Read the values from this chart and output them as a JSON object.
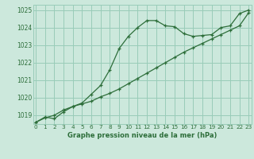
{
  "title": "Graphe pression niveau de la mer (hPa)",
  "background_color": "#cce8dc",
  "grid_color": "#99ccb8",
  "line_color": "#2d6e3a",
  "x_values": [
    0,
    1,
    2,
    3,
    4,
    5,
    6,
    7,
    8,
    9,
    10,
    11,
    12,
    13,
    14,
    15,
    16,
    17,
    18,
    19,
    20,
    21,
    22,
    23
  ],
  "line1_values": [
    1018.6,
    1018.9,
    1018.8,
    1019.2,
    1019.5,
    1019.7,
    1020.2,
    1020.7,
    1021.6,
    1022.8,
    1023.5,
    1024.0,
    1024.4,
    1024.4,
    1024.1,
    1024.05,
    1023.65,
    1023.5,
    1023.55,
    1023.6,
    1024.0,
    1024.1,
    1024.8,
    1025.0
  ],
  "line2_values": [
    1018.6,
    1018.85,
    1019.0,
    1019.3,
    1019.5,
    1019.65,
    1019.8,
    1020.05,
    1020.25,
    1020.5,
    1020.8,
    1021.1,
    1021.4,
    1021.7,
    1022.0,
    1022.3,
    1022.6,
    1022.85,
    1023.1,
    1023.35,
    1023.6,
    1023.85,
    1024.1,
    1024.85
  ],
  "ylim": [
    1018.5,
    1025.3
  ],
  "yticks": [
    1019,
    1020,
    1021,
    1022,
    1023,
    1024,
    1025
  ],
  "xlim": [
    -0.3,
    23.3
  ],
  "xticks": [
    0,
    1,
    2,
    3,
    4,
    5,
    6,
    7,
    8,
    9,
    10,
    11,
    12,
    13,
    14,
    15,
    16,
    17,
    18,
    19,
    20,
    21,
    22,
    23
  ]
}
